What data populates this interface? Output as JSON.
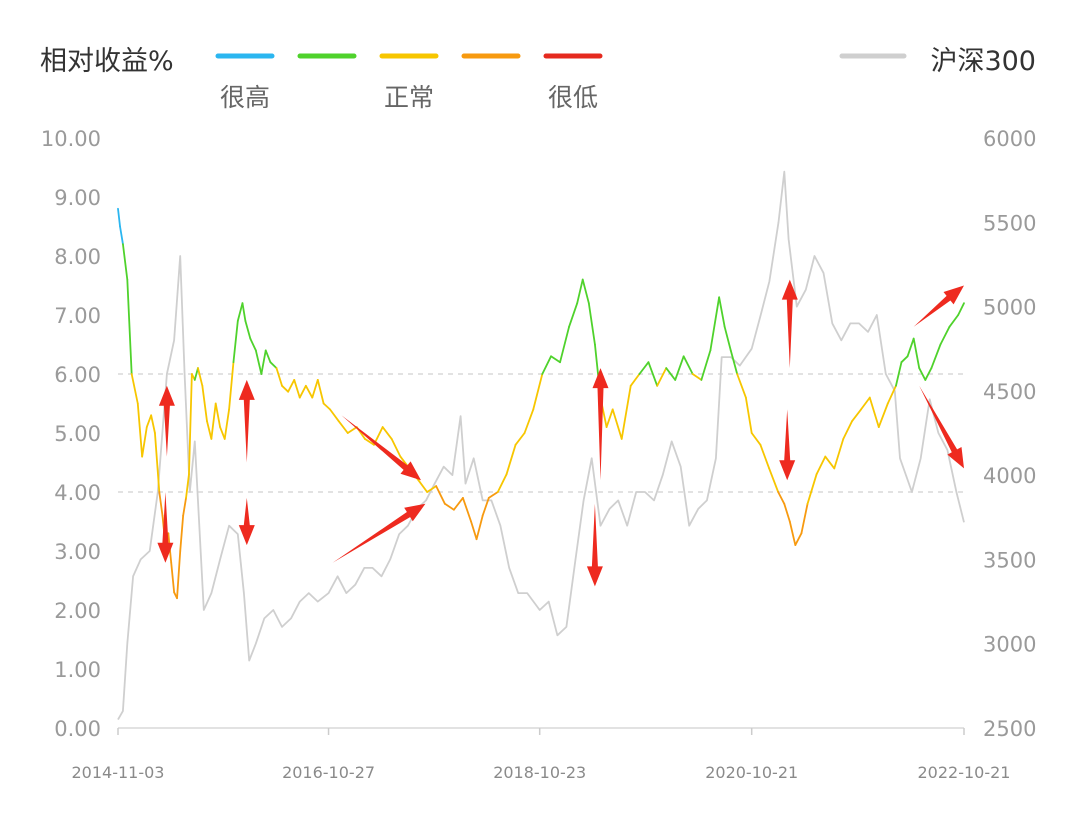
{
  "chart_data": {
    "type": "line",
    "title": "",
    "y_left": {
      "label": "相对收益%",
      "min": 0,
      "max": 10,
      "ticks": [
        "0.00",
        "1.00",
        "2.00",
        "3.00",
        "4.00",
        "5.00",
        "6.00",
        "7.00",
        "8.00",
        "9.00",
        "10.00"
      ]
    },
    "y_right": {
      "label": "沪深300",
      "min": 2500,
      "max": 6000,
      "ticks": [
        "2500",
        "3000",
        "3500",
        "4000",
        "4500",
        "5000",
        "5500",
        "6000"
      ]
    },
    "x_range": [
      "2014-11-03",
      "2022-10-21"
    ],
    "x_ticks": [
      "2014-11-03",
      "2016-10-27",
      "2018-10-23",
      "2020-10-21",
      "2022-10-21"
    ],
    "threshold_lines": [
      6.0,
      4.0
    ],
    "grid": false,
    "legend": {
      "placement": "top",
      "colors": [
        {
          "color": "#2bb6f0",
          "label": "很高"
        },
        {
          "color": "#4fd22c",
          "label": ""
        },
        {
          "color": "#f7c600",
          "label": "正常"
        },
        {
          "color": "#f79a10",
          "label": ""
        },
        {
          "color": "#e52a1f",
          "label": "很低"
        }
      ],
      "index_series": {
        "color": "#cfcfcf",
        "label": "沪深300"
      }
    },
    "series": [
      {
        "name": "相对收益%",
        "axis": "left",
        "points": [
          [
            "2014-11-03",
            8.8
          ],
          [
            "2014-11-10",
            8.5
          ],
          [
            "2014-11-20",
            8.2
          ],
          [
            "2014-12-05",
            7.6
          ],
          [
            "2014-12-20",
            6.0
          ],
          [
            "2015-01-10",
            5.5
          ],
          [
            "2015-01-25",
            4.6
          ],
          [
            "2015-02-10",
            5.1
          ],
          [
            "2015-02-25",
            5.3
          ],
          [
            "2015-03-10",
            5.0
          ],
          [
            "2015-03-25",
            4.0
          ],
          [
            "2015-04-05",
            3.6
          ],
          [
            "2015-04-15",
            3.1
          ],
          [
            "2015-04-25",
            3.3
          ],
          [
            "2015-05-05",
            2.8
          ],
          [
            "2015-05-15",
            2.3
          ],
          [
            "2015-05-25",
            2.2
          ],
          [
            "2015-06-05",
            3.0
          ],
          [
            "2015-06-15",
            3.6
          ],
          [
            "2015-06-25",
            3.9
          ],
          [
            "2015-07-05",
            4.3
          ],
          [
            "2015-07-15",
            6.0
          ],
          [
            "2015-07-25",
            5.9
          ],
          [
            "2015-08-05",
            6.1
          ],
          [
            "2015-08-20",
            5.8
          ],
          [
            "2015-09-05",
            5.2
          ],
          [
            "2015-09-20",
            4.9
          ],
          [
            "2015-10-05",
            5.5
          ],
          [
            "2015-10-20",
            5.1
          ],
          [
            "2015-11-05",
            4.9
          ],
          [
            "2015-11-20",
            5.4
          ],
          [
            "2015-12-05",
            6.2
          ],
          [
            "2015-12-20",
            6.9
          ],
          [
            "2016-01-05",
            7.2
          ],
          [
            "2016-01-15",
            6.9
          ],
          [
            "2016-02-01",
            6.6
          ],
          [
            "2016-02-20",
            6.4
          ],
          [
            "2016-03-10",
            6.0
          ],
          [
            "2016-03-25",
            6.4
          ],
          [
            "2016-04-10",
            6.2
          ],
          [
            "2016-05-01",
            6.1
          ],
          [
            "2016-05-20",
            5.8
          ],
          [
            "2016-06-10",
            5.7
          ],
          [
            "2016-07-01",
            5.9
          ],
          [
            "2016-07-20",
            5.6
          ],
          [
            "2016-08-10",
            5.8
          ],
          [
            "2016-09-01",
            5.6
          ],
          [
            "2016-09-20",
            5.9
          ],
          [
            "2016-10-10",
            5.5
          ],
          [
            "2016-11-01",
            5.4
          ],
          [
            "2016-12-01",
            5.2
          ],
          [
            "2017-01-01",
            5.0
          ],
          [
            "2017-02-01",
            5.1
          ],
          [
            "2017-03-01",
            4.9
          ],
          [
            "2017-04-01",
            4.8
          ],
          [
            "2017-05-01",
            5.1
          ],
          [
            "2017-06-01",
            4.9
          ],
          [
            "2017-07-01",
            4.6
          ],
          [
            "2017-08-01",
            4.4
          ],
          [
            "2017-09-01",
            4.2
          ],
          [
            "2017-10-01",
            4.0
          ],
          [
            "2017-11-01",
            4.1
          ],
          [
            "2017-12-01",
            3.8
          ],
          [
            "2018-01-01",
            3.7
          ],
          [
            "2018-02-01",
            3.9
          ],
          [
            "2018-03-01",
            3.5
          ],
          [
            "2018-03-20",
            3.2
          ],
          [
            "2018-04-10",
            3.6
          ],
          [
            "2018-05-01",
            3.9
          ],
          [
            "2018-06-01",
            4.0
          ],
          [
            "2018-07-01",
            4.3
          ],
          [
            "2018-08-01",
            4.8
          ],
          [
            "2018-09-01",
            5.0
          ],
          [
            "2018-10-01",
            5.4
          ],
          [
            "2018-11-01",
            6.0
          ],
          [
            "2018-12-01",
            6.3
          ],
          [
            "2019-01-01",
            6.2
          ],
          [
            "2019-02-01",
            6.8
          ],
          [
            "2019-03-01",
            7.2
          ],
          [
            "2019-03-20",
            7.6
          ],
          [
            "2019-04-10",
            7.2
          ],
          [
            "2019-05-01",
            6.5
          ],
          [
            "2019-05-20",
            5.6
          ],
          [
            "2019-06-10",
            5.1
          ],
          [
            "2019-07-01",
            5.4
          ],
          [
            "2019-08-01",
            4.9
          ],
          [
            "2019-09-01",
            5.8
          ],
          [
            "2019-10-01",
            6.0
          ],
          [
            "2019-11-01",
            6.2
          ],
          [
            "2019-12-01",
            5.8
          ],
          [
            "2020-01-01",
            6.1
          ],
          [
            "2020-02-01",
            5.9
          ],
          [
            "2020-03-01",
            6.3
          ],
          [
            "2020-04-01",
            6.0
          ],
          [
            "2020-05-01",
            5.9
          ],
          [
            "2020-06-01",
            6.4
          ],
          [
            "2020-07-01",
            7.3
          ],
          [
            "2020-07-20",
            6.8
          ],
          [
            "2020-08-10",
            6.4
          ],
          [
            "2020-09-01",
            6.0
          ],
          [
            "2020-10-01",
            5.6
          ],
          [
            "2020-10-21",
            5.0
          ],
          [
            "2020-11-20",
            4.8
          ],
          [
            "2020-12-20",
            4.4
          ],
          [
            "2021-01-20",
            4.0
          ],
          [
            "2021-02-10",
            3.8
          ],
          [
            "2021-03-01",
            3.5
          ],
          [
            "2021-03-20",
            3.1
          ],
          [
            "2021-04-10",
            3.3
          ],
          [
            "2021-05-01",
            3.8
          ],
          [
            "2021-06-01",
            4.3
          ],
          [
            "2021-07-01",
            4.6
          ],
          [
            "2021-08-01",
            4.4
          ],
          [
            "2021-09-01",
            4.9
          ],
          [
            "2021-10-01",
            5.2
          ],
          [
            "2021-11-01",
            5.4
          ],
          [
            "2021-12-01",
            5.6
          ],
          [
            "2022-01-01",
            5.1
          ],
          [
            "2022-02-01",
            5.5
          ],
          [
            "2022-03-01",
            5.8
          ],
          [
            "2022-03-20",
            6.2
          ],
          [
            "2022-04-10",
            6.3
          ],
          [
            "2022-05-01",
            6.6
          ],
          [
            "2022-05-20",
            6.1
          ],
          [
            "2022-06-10",
            5.9
          ],
          [
            "2022-07-01",
            6.1
          ],
          [
            "2022-08-01",
            6.5
          ],
          [
            "2022-09-01",
            6.8
          ],
          [
            "2022-10-01",
            7.0
          ],
          [
            "2022-10-21",
            7.2
          ]
        ]
      },
      {
        "name": "沪深300",
        "axis": "right",
        "points": [
          [
            "2014-11-03",
            2550
          ],
          [
            "2014-11-20",
            2600
          ],
          [
            "2014-12-05",
            3000
          ],
          [
            "2014-12-25",
            3400
          ],
          [
            "2015-01-20",
            3500
          ],
          [
            "2015-02-20",
            3550
          ],
          [
            "2015-03-20",
            3900
          ],
          [
            "2015-04-20",
            4600
          ],
          [
            "2015-05-15",
            4800
          ],
          [
            "2015-06-05",
            5300
          ],
          [
            "2015-06-20",
            4600
          ],
          [
            "2015-07-08",
            3900
          ],
          [
            "2015-07-25",
            4200
          ],
          [
            "2015-08-25",
            3200
          ],
          [
            "2015-09-20",
            3300
          ],
          [
            "2015-10-20",
            3500
          ],
          [
            "2015-11-20",
            3700
          ],
          [
            "2015-12-20",
            3650
          ],
          [
            "2016-01-10",
            3300
          ],
          [
            "2016-01-28",
            2900
          ],
          [
            "2016-02-20",
            3000
          ],
          [
            "2016-03-20",
            3150
          ],
          [
            "2016-04-20",
            3200
          ],
          [
            "2016-05-20",
            3100
          ],
          [
            "2016-06-20",
            3150
          ],
          [
            "2016-07-20",
            3250
          ],
          [
            "2016-08-20",
            3300
          ],
          [
            "2016-09-20",
            3250
          ],
          [
            "2016-10-27",
            3300
          ],
          [
            "2016-11-27",
            3400
          ],
          [
            "2016-12-27",
            3300
          ],
          [
            "2017-01-27",
            3350
          ],
          [
            "2017-02-27",
            3450
          ],
          [
            "2017-03-27",
            3450
          ],
          [
            "2017-04-27",
            3400
          ],
          [
            "2017-05-27",
            3500
          ],
          [
            "2017-06-27",
            3650
          ],
          [
            "2017-07-27",
            3700
          ],
          [
            "2017-08-27",
            3800
          ],
          [
            "2017-09-27",
            3850
          ],
          [
            "2017-10-27",
            3950
          ],
          [
            "2017-11-27",
            4050
          ],
          [
            "2017-12-27",
            4000
          ],
          [
            "2018-01-24",
            4350
          ],
          [
            "2018-02-10",
            3950
          ],
          [
            "2018-03-10",
            4100
          ],
          [
            "2018-04-10",
            3850
          ],
          [
            "2018-05-10",
            3850
          ],
          [
            "2018-06-10",
            3700
          ],
          [
            "2018-07-10",
            3450
          ],
          [
            "2018-08-10",
            3300
          ],
          [
            "2018-09-10",
            3300
          ],
          [
            "2018-10-23",
            3200
          ],
          [
            "2018-11-23",
            3250
          ],
          [
            "2018-12-23",
            3050
          ],
          [
            "2019-01-23",
            3100
          ],
          [
            "2019-02-23",
            3500
          ],
          [
            "2019-03-23",
            3850
          ],
          [
            "2019-04-20",
            4100
          ],
          [
            "2019-05-20",
            3700
          ],
          [
            "2019-06-20",
            3800
          ],
          [
            "2019-07-20",
            3850
          ],
          [
            "2019-08-20",
            3700
          ],
          [
            "2019-09-20",
            3900
          ],
          [
            "2019-10-20",
            3900
          ],
          [
            "2019-11-20",
            3850
          ],
          [
            "2019-12-20",
            4000
          ],
          [
            "2020-01-20",
            4200
          ],
          [
            "2020-02-20",
            4050
          ],
          [
            "2020-03-20",
            3700
          ],
          [
            "2020-04-20",
            3800
          ],
          [
            "2020-05-20",
            3850
          ],
          [
            "2020-06-20",
            4100
          ],
          [
            "2020-07-10",
            4700
          ],
          [
            "2020-08-10",
            4700
          ],
          [
            "2020-09-10",
            4650
          ],
          [
            "2020-10-21",
            4750
          ],
          [
            "2020-11-21",
            4950
          ],
          [
            "2020-12-21",
            5150
          ],
          [
            "2021-01-21",
            5500
          ],
          [
            "2021-02-10",
            5800
          ],
          [
            "2021-02-25",
            5400
          ],
          [
            "2021-03-25",
            5000
          ],
          [
            "2021-04-25",
            5100
          ],
          [
            "2021-05-25",
            5300
          ],
          [
            "2021-06-25",
            5200
          ],
          [
            "2021-07-25",
            4900
          ],
          [
            "2021-08-25",
            4800
          ],
          [
            "2021-09-25",
            4900
          ],
          [
            "2021-10-25",
            4900
          ],
          [
            "2021-11-25",
            4850
          ],
          [
            "2021-12-25",
            4950
          ],
          [
            "2022-01-25",
            4600
          ],
          [
            "2022-02-25",
            4500
          ],
          [
            "2022-03-15",
            4100
          ],
          [
            "2022-04-25",
            3900
          ],
          [
            "2022-05-25",
            4100
          ],
          [
            "2022-06-25",
            4450
          ],
          [
            "2022-07-25",
            4250
          ],
          [
            "2022-08-25",
            4150
          ],
          [
            "2022-09-25",
            3900
          ],
          [
            "2022-10-21",
            3720
          ]
        ]
      }
    ],
    "annotations": [
      {
        "type": "arrow",
        "from": [
          "2015-04-20",
          4.6
        ],
        "to": [
          "2015-04-20",
          5.8
        ]
      },
      {
        "type": "arrow",
        "from": [
          "2015-04-15",
          4.0
        ],
        "to": [
          "2015-04-15",
          2.8
        ]
      },
      {
        "type": "arrow",
        "from": [
          "2016-01-20",
          4.5
        ],
        "to": [
          "2016-01-20",
          5.9
        ]
      },
      {
        "type": "arrow",
        "from": [
          "2016-01-20",
          3.9
        ],
        "to": [
          "2016-01-20",
          3.1
        ]
      },
      {
        "type": "arrow",
        "from": [
          "2016-12-10",
          5.3
        ],
        "to": [
          "2017-09-10",
          4.2
        ]
      },
      {
        "type": "arrow",
        "from": [
          "2016-11-10",
          2.8
        ],
        "to": [
          "2017-09-25",
          3.8
        ]
      },
      {
        "type": "arrow",
        "from": [
          "2019-05-20",
          4.2
        ],
        "to": [
          "2019-05-20",
          6.1
        ]
      },
      {
        "type": "arrow",
        "from": [
          "2019-05-01",
          3.8
        ],
        "to": [
          "2019-05-01",
          2.4
        ]
      },
      {
        "type": "arrow",
        "from": [
          "2021-03-01",
          6.1
        ],
        "to": [
          "2021-03-01",
          7.6
        ]
      },
      {
        "type": "arrow",
        "from": [
          "2021-02-20",
          5.4
        ],
        "to": [
          "2021-02-20",
          4.2
        ]
      },
      {
        "type": "arrow",
        "from": [
          "2022-05-01",
          6.8
        ],
        "to": [
          "2022-10-21",
          7.5
        ]
      },
      {
        "type": "arrow",
        "from": [
          "2022-05-20",
          5.8
        ],
        "to": [
          "2022-10-21",
          4.4
        ]
      }
    ]
  }
}
